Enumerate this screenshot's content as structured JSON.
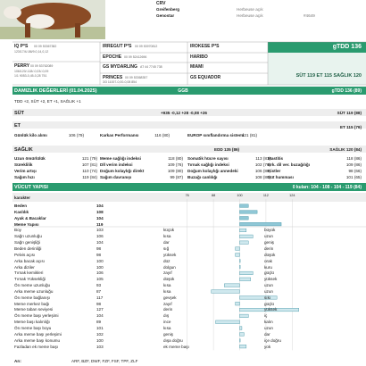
{
  "header": {
    "brand": "CRV",
    "rows": [
      [
        "Greifenberg",
        "Herbeuse açık"
      ],
      [
        "Genostar",
        "Herbeuse açık",
        "#4649"
      ]
    ]
  },
  "pedigree": {
    "sire": "IQ P*S",
    "sire_code": "00 09 53367382",
    "sire_line": "123/17/4/-86/9.0,14,0,12",
    "dam": "PERRY",
    "dam_code": "00 09 53762089",
    "dam_line1": "106/120/-118/-0,03/-0,09",
    "dam_line2": "1/1 9053-0,45-0,28 751",
    "gen2": [
      {
        "name": "IRREGUT P*S",
        "code": "00 09 53970812"
      },
      {
        "name": "EPOCHE",
        "code": "00 09 52412696"
      },
      {
        "name": "GS MYDARLING",
        "code": "AT 44 7745 738"
      },
      {
        "name": "PRINCES",
        "code": "00 09 53368357"
      }
    ],
    "gen2_extra": "3/3 11007-0,00-0,08 854",
    "gen3": [
      "IROKESE P*S",
      "HARIBO",
      "MIAMI",
      "GS EQUADOR"
    ]
  },
  "summary": {
    "title": "gTDD 136",
    "indices": "SÜT 119   ET 115   SAĞLIK 120"
  },
  "breeding": {
    "title": "DAMIZLIK DEĞERLERİ (01.04.2025)",
    "source": "GGB",
    "total": "gTDD 136 (89)",
    "note": "TDD +2, SÜT +2, ET +1, SAĞLIK +1"
  },
  "milk": {
    "title": "SÜT",
    "figures": "+935 -0,12 +28 -0,08 +26",
    "index": "SÜT 119 (88)"
  },
  "meat": {
    "title": "ET",
    "index": "ET 115 (79)",
    "items": [
      [
        "Günlük kilo alımı",
        "106 (79)"
      ],
      [
        "Karkas Performansı",
        "116 (80)"
      ],
      [
        "EUROP sınıflandırma sistemi",
        "121 (81)"
      ]
    ]
  },
  "health": {
    "title": "SAĞLIK",
    "edd": "EDD 135 (86)",
    "index": "SAĞLIK 120 (84)",
    "rows": [
      [
        [
          "Uzun ömürlülük",
          "121 (79)"
        ],
        [
          "Meme sağlığı indeksi",
          "118 (80)"
        ],
        [
          "Somatik hücre sayısı",
          "113 (81)"
        ],
        [
          "Mastitis",
          "118 (86)"
        ]
      ],
      [
        [
          "Süreklilik",
          "107 (81)"
        ],
        [
          "Dİİ verim indeksi",
          "109 (76)"
        ],
        [
          "Tırnak sağlığı indeksi",
          "102 (76)"
        ],
        [
          "Erk. dil ver. buzağılığı",
          "109 (86)"
        ]
      ],
      [
        [
          "Verim artışı",
          "110 (74)"
        ],
        [
          "Doğum kolaylığı direkt",
          "109 (80)"
        ],
        [
          "Doğum kolaylığı annedeki",
          "106 (86)"
        ],
        [
          "Kistler",
          "98 (66)"
        ]
      ],
      [
        [
          "Sağım hızı",
          "119 (84)"
        ],
        [
          "Sağım davranışı",
          "99 (87)"
        ],
        [
          "Buzağı canlılığı",
          "108 (86)"
        ],
        [
          "Süt humması",
          "101 (65)"
        ]
      ]
    ]
  },
  "conformation": {
    "title": "VÜCUT YAPISI",
    "summary": "0 kuları: 104 - 108 - 104 - 119 (84)",
    "column": "karakter",
    "xlim": [
      70,
      130
    ],
    "ticks": [
      76,
      88,
      100,
      112,
      124
    ],
    "main": [
      {
        "name": "Beden",
        "value": 104
      },
      {
        "name": "Kaslılık",
        "value": 108
      },
      {
        "name": "Ayak & Bacaklar",
        "value": 104
      },
      {
        "name": "Meme Yapısı",
        "value": 119
      }
    ],
    "rows": [
      {
        "name": "Boy",
        "value": 103,
        "low": "küçük",
        "high": "büyük"
      },
      {
        "name": "Sağrı uzunluğu",
        "value": 106,
        "low": "kısa",
        "high": "uzun"
      },
      {
        "name": "Sağrı genişliği",
        "value": 104,
        "low": "dar",
        "high": "geniş"
      },
      {
        "name": "Beden derinliği",
        "value": 98,
        "low": "sığ",
        "high": "derin"
      },
      {
        "name": "Pelvis açısı",
        "value": 98,
        "low": "yüksek",
        "high": "düşük"
      },
      {
        "name": "Arka bacak açısı",
        "value": 100,
        "low": "düz",
        "high": "orak"
      },
      {
        "name": "Arka diziler",
        "value": 100,
        "low": "dolgun",
        "high": "kuru"
      },
      {
        "name": "Tırnak kemikleri",
        "value": 106,
        "low": "zayıf",
        "high": "güçlü"
      },
      {
        "name": "Tırnak Yüksekliği",
        "value": 105,
        "low": "düşük",
        "high": "yüksek"
      },
      {
        "name": "Ön meme uzunluğu",
        "value": 93,
        "low": "kısa",
        "high": "uzun"
      },
      {
        "name": "Arka meme uzunluğu",
        "value": 87,
        "low": "kısa",
        "high": "uzun"
      },
      {
        "name": "Ön meme bağlanışı",
        "value": 117,
        "low": "gevşek",
        "high": "sıkı"
      },
      {
        "name": "Meme merkez bağı",
        "value": 98,
        "low": "zayıf",
        "high": "güçlü"
      },
      {
        "name": "Meme taban seviyesi",
        "value": 127,
        "low": "derin",
        "high": "yüksek"
      },
      {
        "name": "Ön meme başı yerleşimi",
        "value": 104,
        "low": "dış",
        "high": "iç"
      },
      {
        "name": "Meme başı kalınlığı",
        "value": 89,
        "low": "ince",
        "high": "kalın"
      },
      {
        "name": "Ön meme başı boyu",
        "value": 101,
        "low": "kısa",
        "high": "uzun"
      },
      {
        "name": "Arka meme başı yerleşimi",
        "value": 102,
        "low": "geniş",
        "high": "dar"
      },
      {
        "name": "Arka meme başı konumu",
        "value": 100,
        "low": "dışa doğru",
        "high": "içe doğru"
      },
      {
        "name": "Fazladan ek meme başı",
        "value": 103,
        "low": "ek meme başı",
        "high": "yok"
      }
    ]
  },
  "footer": {
    "label": "Arı:",
    "value": "ARF, BZF, DWF, FZF, FSF, TPF, ZLF"
  }
}
